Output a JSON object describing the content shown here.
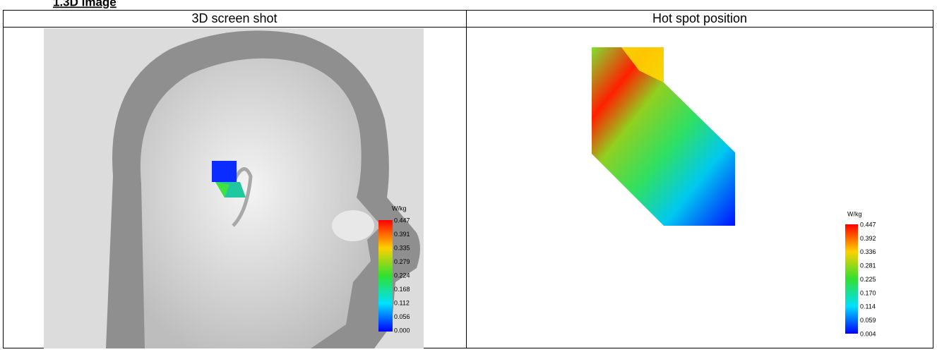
{
  "heading": "1.3D image",
  "table": {
    "headers": [
      "3D screen shot",
      "Hot spot position"
    ]
  },
  "left_legend": {
    "unit": "W/kg",
    "labels": [
      "0.447",
      "0.391",
      "0.335",
      "0.279",
      "0.224",
      "0.168",
      "0.112",
      "0.056",
      "0.000"
    ]
  },
  "right_legend": {
    "unit": "W/kg",
    "labels": [
      "0.447",
      "0.392",
      "0.336",
      "0.281",
      "0.225",
      "0.170",
      "0.114",
      "0.059",
      "0.004"
    ]
  }
}
